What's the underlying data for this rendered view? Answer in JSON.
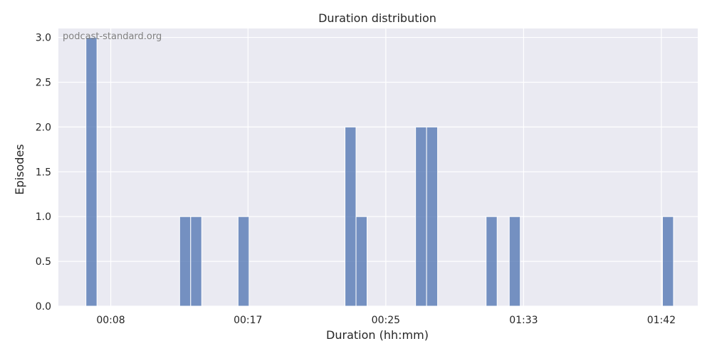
{
  "chart_data": {
    "type": "bar",
    "title": "Duration distribution",
    "xlabel": "Duration (hh:mm)",
    "ylabel": "Episodes",
    "watermark": "podcast-standard.org",
    "ylim": [
      0,
      3.1
    ],
    "yticks": [
      "0.0",
      "0.5",
      "1.0",
      "1.5",
      "2.0",
      "2.5",
      "3.0"
    ],
    "xlim": [
      0,
      58
    ],
    "xticks": [
      {
        "value": 4.75,
        "label": "00:08"
      },
      {
        "value": 17.2,
        "label": "00:17"
      },
      {
        "value": 29.7,
        "label": "00:25"
      },
      {
        "value": 42.2,
        "label": "01:33"
      },
      {
        "value": 54.7,
        "label": "01:42"
      }
    ],
    "bins": [
      {
        "x0": 2.5,
        "x1": 3.5,
        "count": 3
      },
      {
        "x0": 11,
        "x1": 12,
        "count": 1
      },
      {
        "x0": 12,
        "x1": 13,
        "count": 1
      },
      {
        "x0": 16.3,
        "x1": 17.3,
        "count": 1
      },
      {
        "x0": 26,
        "x1": 27,
        "count": 2
      },
      {
        "x0": 27,
        "x1": 28,
        "count": 1
      },
      {
        "x0": 32.4,
        "x1": 33.4,
        "count": 2
      },
      {
        "x0": 33.4,
        "x1": 34.4,
        "count": 2
      },
      {
        "x0": 38.8,
        "x1": 39.8,
        "count": 1
      },
      {
        "x0": 40.9,
        "x1": 41.9,
        "count": 1
      },
      {
        "x0": 54.8,
        "x1": 55.8,
        "count": 1
      }
    ],
    "bar_color": "#4C72B0",
    "bar_opacity": 0.75,
    "grid": true,
    "background": "#EAEAF2"
  }
}
